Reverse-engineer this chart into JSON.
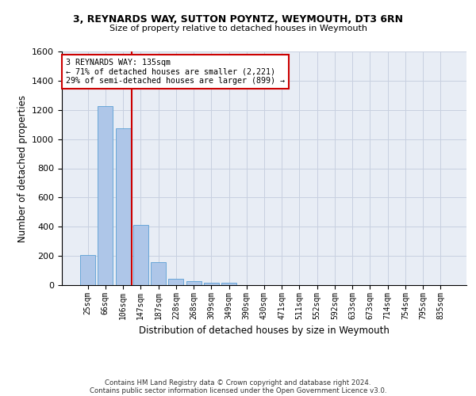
{
  "title1": "3, REYNARDS WAY, SUTTON POYNTZ, WEYMOUTH, DT3 6RN",
  "title2": "Size of property relative to detached houses in Weymouth",
  "xlabel": "Distribution of detached houses by size in Weymouth",
  "ylabel": "Number of detached properties",
  "bar_color": "#aec6e8",
  "bar_edge_color": "#5a9fd4",
  "grid_color": "#c8d0e0",
  "bg_color": "#e8edf5",
  "categories": [
    "25sqm",
    "66sqm",
    "106sqm",
    "147sqm",
    "187sqm",
    "228sqm",
    "268sqm",
    "309sqm",
    "349sqm",
    "390sqm",
    "430sqm",
    "471sqm",
    "511sqm",
    "552sqm",
    "592sqm",
    "633sqm",
    "673sqm",
    "714sqm",
    "754sqm",
    "795sqm",
    "835sqm"
  ],
  "values": [
    205,
    1225,
    1075,
    410,
    160,
    45,
    28,
    18,
    15,
    0,
    0,
    0,
    0,
    0,
    0,
    0,
    0,
    0,
    0,
    0,
    0
  ],
  "ylim": [
    0,
    1600
  ],
  "yticks": [
    0,
    200,
    400,
    600,
    800,
    1000,
    1200,
    1400,
    1600
  ],
  "property_line_x": 2.5,
  "annotation_text": "3 REYNARDS WAY: 135sqm\n← 71% of detached houses are smaller (2,221)\n29% of semi-detached houses are larger (899) →",
  "annotation_box_color": "#ffffff",
  "annotation_border_color": "#cc0000",
  "line_color": "#cc0000",
  "footnote1": "Contains HM Land Registry data © Crown copyright and database right 2024.",
  "footnote2": "Contains public sector information licensed under the Open Government Licence v3.0."
}
